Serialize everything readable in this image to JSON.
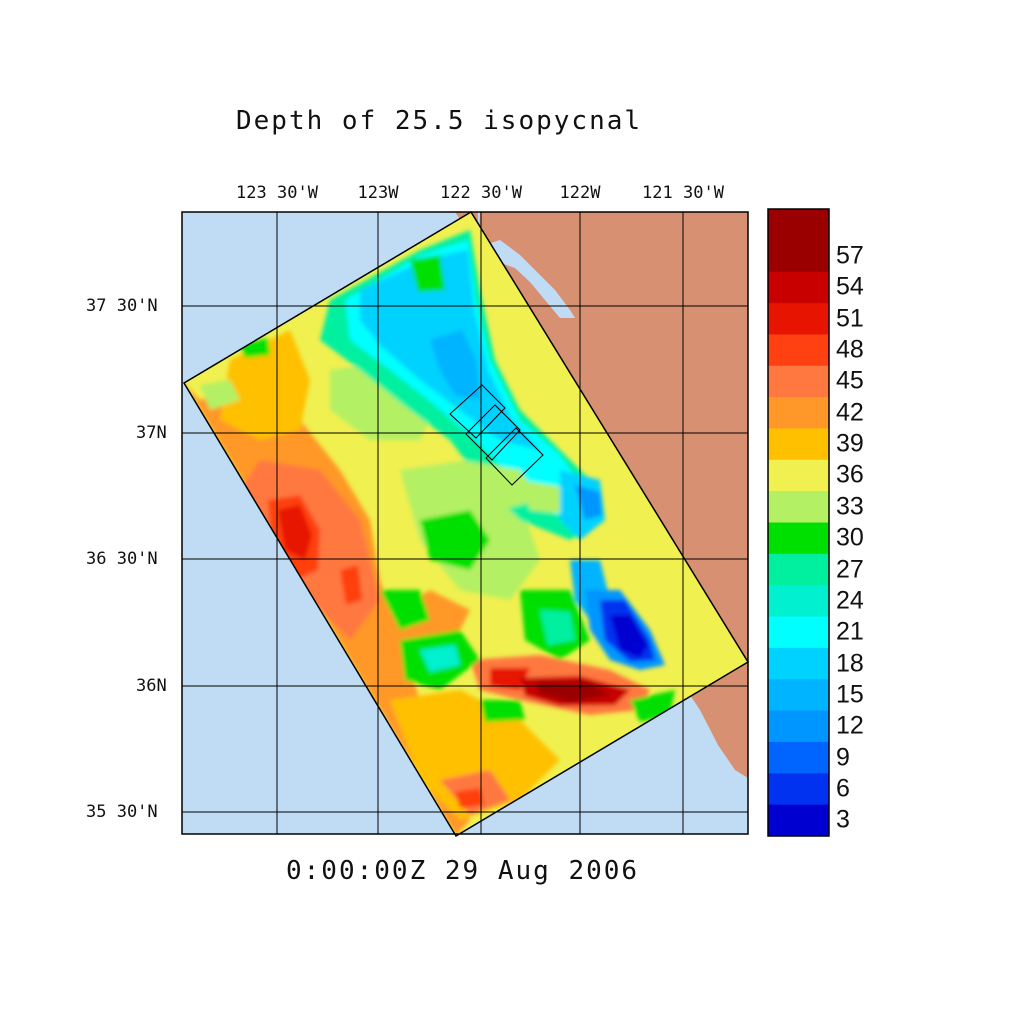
{
  "title": "Depth of 25.5 isopycnal",
  "timestamp": "0:00:00Z  29 Aug 2006",
  "lon_labels": [
    "123 30'W",
    "123W",
    "122 30'W",
    "122W",
    "121 30'W"
  ],
  "lat_labels": [
    "37 30'N",
    "37N",
    "36 30'N",
    "36N",
    "35 30'N"
  ],
  "colorbar": {
    "labels": [
      "57",
      "54",
      "51",
      "48",
      "45",
      "42",
      "39",
      "36",
      "33",
      "30",
      "27",
      "24",
      "21",
      "18",
      "15",
      "12",
      "9",
      "6",
      "3"
    ],
    "colors": [
      "#9a0000",
      "#c80000",
      "#e61400",
      "#ff4010",
      "#ff7840",
      "#ff9828",
      "#ffc000",
      "#f0f050",
      "#b4f064",
      "#00e000",
      "#00f0a0",
      "#00f0d0",
      "#00ffff",
      "#00d2ff",
      "#00b4ff",
      "#0096ff",
      "#0064ff",
      "#0032f0",
      "#0000d0"
    ]
  },
  "colors": {
    "ocean": "#c0dcf5",
    "land": "#d79172",
    "grid": "#000000"
  }
}
